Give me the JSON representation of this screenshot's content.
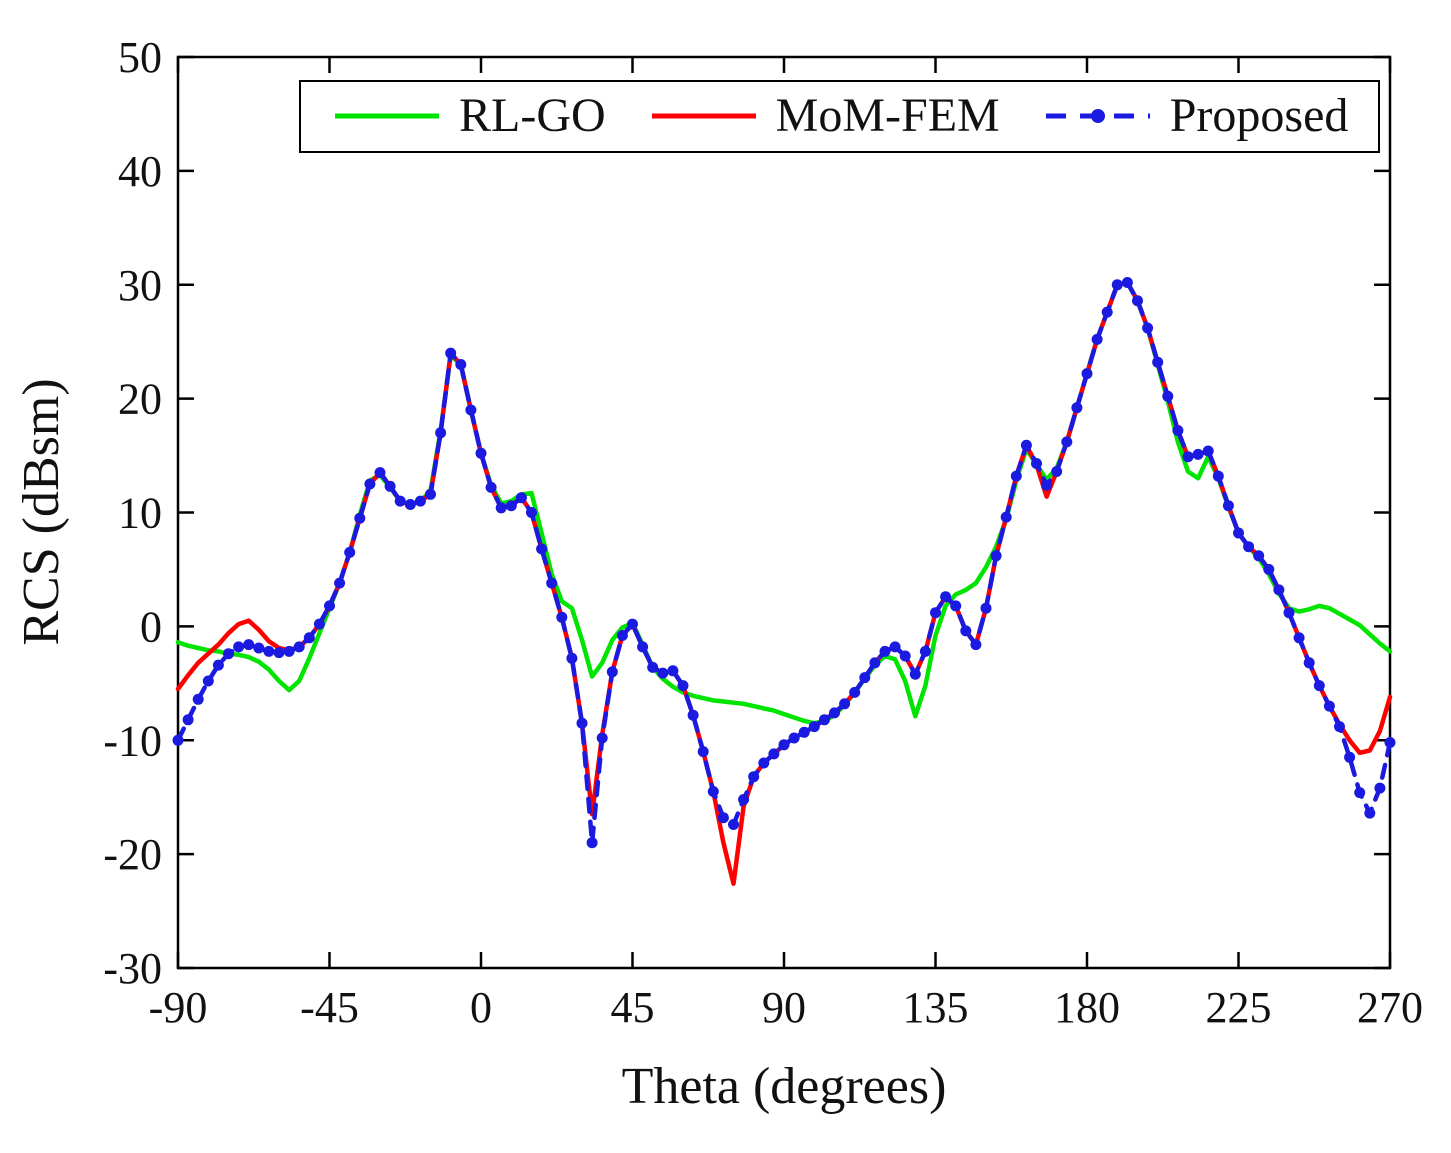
{
  "chart_data": {
    "type": "line",
    "title": "",
    "xlabel": "Theta (degrees)",
    "ylabel": "RCS (dBsm)",
    "xlim": [
      -90,
      270
    ],
    "ylim": [
      -30,
      50
    ],
    "x_ticks": [
      -90,
      -45,
      0,
      45,
      90,
      135,
      180,
      225,
      270
    ],
    "y_ticks": [
      -30,
      -20,
      -10,
      0,
      10,
      20,
      30,
      40,
      50
    ],
    "grid": false,
    "legend_position": "top-center",
    "x": [
      -90,
      -87,
      -84,
      -81,
      -78,
      -75,
      -72,
      -69,
      -66,
      -63,
      -60,
      -57,
      -54,
      -51,
      -48,
      -45,
      -42,
      -39,
      -36,
      -33,
      -30,
      -27,
      -24,
      -21,
      -18,
      -15,
      -12,
      -9,
      -6,
      -3,
      0,
      3,
      6,
      9,
      12,
      15,
      18,
      21,
      24,
      27,
      30,
      33,
      36,
      39,
      42,
      45,
      48,
      51,
      54,
      57,
      60,
      63,
      66,
      69,
      72,
      75,
      78,
      81,
      84,
      87,
      90,
      93,
      96,
      99,
      102,
      105,
      108,
      111,
      114,
      117,
      120,
      123,
      126,
      129,
      132,
      135,
      138,
      141,
      144,
      147,
      150,
      153,
      156,
      159,
      162,
      165,
      168,
      171,
      174,
      177,
      180,
      183,
      186,
      189,
      192,
      195,
      198,
      201,
      204,
      207,
      210,
      213,
      216,
      219,
      222,
      225,
      228,
      231,
      234,
      237,
      240,
      243,
      246,
      249,
      252,
      255,
      258,
      261,
      264,
      267,
      270
    ],
    "series": [
      {
        "name": "RL-GO",
        "color": "#00e400",
        "line": "solid",
        "marker": "none",
        "values": [
          -1.4,
          -1.7,
          -1.9,
          -2.1,
          -2.2,
          -2.4,
          -2.5,
          -2.7,
          -3.1,
          -3.8,
          -4.8,
          -5.6,
          -4.8,
          -2.8,
          -0.6,
          1.6,
          3.8,
          6.5,
          9.8,
          12.8,
          13.3,
          12.2,
          11.0,
          10.7,
          11.0,
          11.9,
          17.2,
          23.8,
          23.0,
          19.0,
          15.2,
          12.4,
          10.8,
          11.0,
          11.6,
          11.7,
          8.2,
          4.6,
          2.2,
          1.6,
          -1.2,
          -4.4,
          -3.2,
          -1.2,
          -0.1,
          0.3,
          -1.6,
          -3.6,
          -4.6,
          -5.3,
          -5.8,
          -6.1,
          -6.3,
          -6.5,
          -6.6,
          -6.7,
          -6.8,
          -7.0,
          -7.2,
          -7.4,
          -7.7,
          -8.0,
          -8.3,
          -8.5,
          -8.3,
          -7.8,
          -6.9,
          -5.8,
          -4.6,
          -3.4,
          -2.6,
          -2.9,
          -4.8,
          -7.9,
          -5.2,
          -0.8,
          1.8,
          2.8,
          3.2,
          3.8,
          5.2,
          7.0,
          9.4,
          12.8,
          15.6,
          14.2,
          12.9,
          13.9,
          16.2,
          19.2,
          22.2,
          25.2,
          27.6,
          30.0,
          30.2,
          28.6,
          26.2,
          23.0,
          19.8,
          16.2,
          13.6,
          13.0,
          14.9,
          13.0,
          10.5,
          8.2,
          7.0,
          6.0,
          4.6,
          2.9,
          1.6,
          1.3,
          1.5,
          1.8,
          1.6,
          1.1,
          0.6,
          0.1,
          -0.7,
          -1.5,
          -2.2
        ]
      },
      {
        "name": "MoM-FEM",
        "color": "#ff0000",
        "line": "solid",
        "marker": "none",
        "values": [
          -5.5,
          -4.3,
          -3.2,
          -2.4,
          -1.6,
          -0.6,
          0.2,
          0.5,
          -0.3,
          -1.3,
          -1.9,
          -2.1,
          -1.8,
          -1.0,
          0.2,
          1.8,
          3.8,
          6.5,
          9.5,
          12.5,
          13.5,
          12.3,
          11.0,
          10.7,
          11.0,
          11.6,
          17.0,
          24.0,
          23.0,
          19.0,
          15.2,
          12.2,
          10.4,
          10.6,
          11.3,
          10.0,
          6.8,
          3.8,
          0.8,
          -2.8,
          -8.5,
          -16.5,
          -9.5,
          -4.0,
          -0.8,
          0.2,
          -1.8,
          -3.6,
          -4.1,
          -3.9,
          -5.2,
          -7.8,
          -11.0,
          -14.5,
          -19.0,
          -22.6,
          -15.8,
          -13.2,
          -12.0,
          -11.2,
          -10.4,
          -9.8,
          -9.3,
          -8.8,
          -8.2,
          -7.6,
          -6.8,
          -5.8,
          -4.5,
          -3.2,
          -2.2,
          -1.8,
          -2.6,
          -4.2,
          -2.2,
          1.2,
          2.6,
          1.8,
          -0.4,
          -1.6,
          1.6,
          6.2,
          9.6,
          13.2,
          15.9,
          14.2,
          11.4,
          13.6,
          16.2,
          19.2,
          22.2,
          25.2,
          27.6,
          30.0,
          30.2,
          28.6,
          26.2,
          23.2,
          20.2,
          17.2,
          14.9,
          15.1,
          15.4,
          13.2,
          10.6,
          8.2,
          7.0,
          6.2,
          5.0,
          3.2,
          1.2,
          -1.0,
          -3.2,
          -5.2,
          -7.0,
          -8.6,
          -10.0,
          -11.1,
          -10.9,
          -9.2,
          -6.2
        ]
      },
      {
        "name": "Proposed",
        "color": "#1a1ae0",
        "line": "dashed",
        "marker": "circle",
        "values": [
          -10.0,
          -8.2,
          -6.4,
          -4.8,
          -3.4,
          -2.4,
          -1.8,
          -1.6,
          -1.9,
          -2.2,
          -2.3,
          -2.2,
          -1.8,
          -1.0,
          0.2,
          1.8,
          3.8,
          6.5,
          9.5,
          12.5,
          13.5,
          12.3,
          11.0,
          10.7,
          11.0,
          11.6,
          17.0,
          24.0,
          23.0,
          19.0,
          15.2,
          12.2,
          10.4,
          10.6,
          11.3,
          10.0,
          6.8,
          3.8,
          0.8,
          -2.8,
          -8.5,
          -19.0,
          -9.8,
          -4.0,
          -0.8,
          0.2,
          -1.8,
          -3.6,
          -4.1,
          -3.9,
          -5.2,
          -7.8,
          -11.0,
          -14.5,
          -16.8,
          -17.4,
          -15.2,
          -13.2,
          -12.0,
          -11.2,
          -10.4,
          -9.8,
          -9.3,
          -8.8,
          -8.2,
          -7.6,
          -6.8,
          -5.8,
          -4.5,
          -3.2,
          -2.2,
          -1.8,
          -2.6,
          -4.2,
          -2.2,
          1.2,
          2.6,
          1.8,
          -0.4,
          -1.6,
          1.6,
          6.2,
          9.6,
          13.2,
          15.9,
          14.3,
          12.4,
          13.6,
          16.2,
          19.2,
          22.2,
          25.2,
          27.6,
          30.0,
          30.2,
          28.6,
          26.2,
          23.2,
          20.2,
          17.2,
          14.9,
          15.1,
          15.4,
          13.2,
          10.6,
          8.2,
          7.0,
          6.2,
          5.0,
          3.2,
          1.2,
          -1.0,
          -3.2,
          -5.2,
          -7.0,
          -8.8,
          -11.5,
          -14.6,
          -16.4,
          -14.2,
          -10.2
        ]
      }
    ]
  }
}
